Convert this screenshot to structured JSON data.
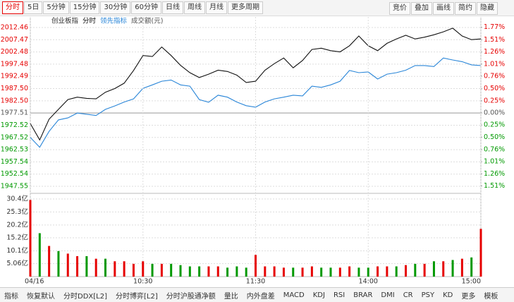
{
  "toolbar": {
    "left": [
      "分时",
      "5日",
      "5分钟",
      "15分钟",
      "30分钟",
      "60分钟",
      "日线",
      "周线",
      "月线",
      "更多周期"
    ],
    "right": [
      "竞价",
      "叠加",
      "画线",
      "简约",
      "隐藏"
    ]
  },
  "bottom_tabs": [
    "指标",
    "恢复默认",
    "分时DDX[L2]",
    "分时博弈[L2]",
    "分时沪股通净额",
    "量比",
    "内外盘差",
    "MACD",
    "KDJ",
    "RSI",
    "BRAR",
    "DMI",
    "CR",
    "PSY",
    "KD",
    "更多",
    "模板"
  ],
  "chart_data": [
    {
      "type": "line",
      "mode": "分时",
      "colors": {
        "up": "#e60000",
        "down": "#009900",
        "flat": "#555555"
      },
      "x": [
        0,
        5,
        10,
        15,
        20,
        25,
        30,
        35,
        40,
        45,
        50,
        55,
        60,
        65,
        70,
        75,
        80,
        85,
        90,
        95,
        100,
        105,
        110,
        115,
        120,
        125,
        130,
        135,
        140,
        145,
        150,
        155,
        160,
        165,
        170,
        175,
        180,
        185,
        190,
        195,
        200,
        205,
        210,
        215,
        220,
        225,
        230,
        235,
        240
      ],
      "xlim": [
        0,
        240
      ],
      "series": [
        {
          "name": "创业板指",
          "color": "#111111",
          "values": [
            1973.2,
            1966.5,
            1975,
            1979,
            1983,
            1984,
            1983.5,
            1983.3,
            1986,
            1987.5,
            1989.7,
            1994.9,
            2001,
            2000.6,
            2004.5,
            2001,
            1997,
            1994,
            1992,
            1993.4,
            1995,
            1994.5,
            1993,
            1990,
            1990.5,
            1995,
            1997.7,
            2000,
            1996,
            1999,
            2003.5,
            2004,
            2003,
            2002.5,
            2005,
            2009,
            2005,
            2003,
            2006,
            2007.8,
            2009.3,
            2007.8,
            2008.5,
            2009.5,
            2010.7,
            2012.2,
            2009,
            2007.5,
            2007.8
          ]
        },
        {
          "name": "领先指标",
          "color": "#2a86d8",
          "values": [
            1967.5,
            1963.5,
            1970,
            1974.7,
            1975.5,
            1977.5,
            1977,
            1976.5,
            1979,
            1980.4,
            1982,
            1983.3,
            1987.6,
            1989,
            1990.5,
            1991,
            1989,
            1988.5,
            1983,
            1981.9,
            1984.8,
            1984,
            1982,
            1980.5,
            1979.9,
            1982,
            1983.3,
            1984,
            1984.8,
            1984.5,
            1988.5,
            1988,
            1989,
            1990.5,
            1994.9,
            1994,
            1994.3,
            1991.4,
            1993.4,
            1994,
            1995,
            1996.9,
            1996.9,
            1996.5,
            2000,
            1999.2,
            1998.5,
            1997.2,
            1996.9
          ]
        }
      ],
      "ylim": [
        1945.24,
        2015.06
      ],
      "yticks": [
        2012.46,
        2007.47,
        2002.48,
        1997.48,
        1992.49,
        {
          "value": 1987.5,
          "label": "1987.50"
        },
        {
          "value": 1982.5,
          "label": "1982.50"
        },
        1977.51,
        1972.52,
        1967.52,
        1962.53,
        1957.54,
        1952.54,
        1947.55
      ],
      "y2lim": [
        -1.634,
        1.897
      ],
      "y2ticks": [
        {
          "value": 1.77,
          "label": "1.77%"
        },
        {
          "value": 1.51,
          "label": "1.51%"
        },
        {
          "value": 1.26,
          "label": "1.26%"
        },
        {
          "value": 1.01,
          "label": "1.01%"
        },
        {
          "value": 0.76,
          "label": "0.76%"
        },
        {
          "value": 0.5,
          "label": "0.50%"
        },
        {
          "value": 0.25,
          "label": "0.25%"
        },
        {
          "value": 0,
          "label": "0.00%"
        },
        {
          "value": -0.25,
          "label": "0.25%"
        },
        {
          "value": -0.5,
          "label": "0.50%"
        },
        {
          "value": -0.76,
          "label": "0.76%"
        },
        {
          "value": -1.01,
          "label": "1.01%"
        },
        {
          "value": -1.26,
          "label": "1.26%"
        },
        {
          "value": -1.51,
          "label": "1.51%"
        }
      ],
      "grid": true
    },
    {
      "type": "bar",
      "title": "成交额(元)",
      "x": [
        0,
        5,
        10,
        15,
        20,
        25,
        30,
        35,
        40,
        45,
        50,
        55,
        60,
        65,
        70,
        75,
        80,
        85,
        90,
        95,
        100,
        105,
        110,
        115,
        120,
        125,
        130,
        135,
        140,
        145,
        150,
        155,
        160,
        165,
        170,
        175,
        180,
        185,
        190,
        195,
        200,
        205,
        210,
        215,
        220,
        225,
        230,
        235,
        240
      ],
      "xlim": [
        0,
        240
      ],
      "values": [
        30,
        17,
        12,
        10,
        9,
        8,
        8,
        7,
        7,
        6,
        6,
        5,
        6,
        5,
        5,
        5,
        4.5,
        4,
        4,
        4,
        4,
        3.5,
        4,
        3.5,
        8.5,
        4,
        4,
        3.5,
        3.5,
        3.5,
        4,
        3.5,
        3.5,
        3.5,
        4,
        3.5,
        3.5,
        4,
        4,
        4,
        4.5,
        5,
        5,
        6,
        6,
        6.5,
        7,
        7.5,
        18.7
      ],
      "bar_colors": [
        "#e60000",
        "#009900",
        "#e60000",
        "#009900",
        "#e60000",
        "#e60000",
        "#009900",
        "#e60000",
        "#009900",
        "#e60000",
        "#e60000",
        "#e60000",
        "#e60000",
        "#009900",
        "#e60000",
        "#009900",
        "#009900",
        "#009900",
        "#009900",
        "#e60000",
        "#e60000",
        "#009900",
        "#009900",
        "#009900",
        "#e60000",
        "#e60000",
        "#e60000",
        "#e60000",
        "#009900",
        "#e60000",
        "#e60000",
        "#009900",
        "#009900",
        "#e60000",
        "#e60000",
        "#009900",
        "#009900",
        "#e60000",
        "#e60000",
        "#009900",
        "#e60000",
        "#009900",
        "#e60000",
        "#009900",
        "#e60000",
        "#009900",
        "#e60000",
        "#009900",
        "#e60000"
      ],
      "ylim": [
        0,
        32.05
      ],
      "yticks": [
        {
          "value": 30.4,
          "label": "30.4亿"
        },
        {
          "value": 25.3,
          "label": "25.3亿"
        },
        {
          "value": 20.2,
          "label": "20.2亿"
        },
        {
          "value": 15.2,
          "label": "15.2亿"
        },
        {
          "value": 10.1,
          "label": "10.1亿"
        },
        {
          "value": 5.06,
          "label": "5.06亿"
        }
      ],
      "xticks": [
        {
          "value": 0,
          "label": "04/16"
        },
        {
          "value": 60,
          "label": "10:30"
        },
        {
          "value": 120,
          "label": "11:30"
        },
        {
          "value": 180,
          "label": "14:00"
        },
        {
          "value": 240,
          "label": "15:00"
        }
      ],
      "grid": true
    }
  ]
}
